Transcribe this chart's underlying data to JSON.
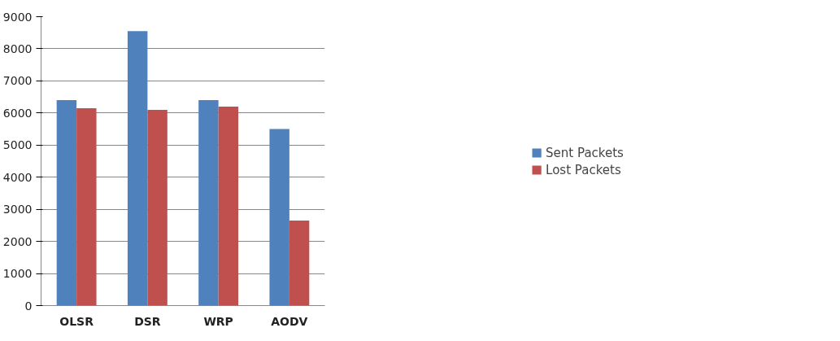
{
  "chart_data": {
    "type": "bar",
    "categories": [
      "OLSR",
      "DSR",
      "WRP",
      "AODV"
    ],
    "series": [
      {
        "name": "Sent Packets",
        "color": "#4f81bd",
        "values": [
          6400,
          8550,
          6400,
          5500
        ]
      },
      {
        "name": "Lost Packets",
        "color": "#c0504d",
        "values": [
          6150,
          6100,
          6200,
          2650
        ]
      }
    ],
    "ylim": [
      0,
      9000
    ],
    "yticks": [
      0,
      1000,
      2000,
      3000,
      4000,
      5000,
      6000,
      7000,
      8000,
      9000
    ],
    "grid": "y",
    "legend": "right"
  }
}
